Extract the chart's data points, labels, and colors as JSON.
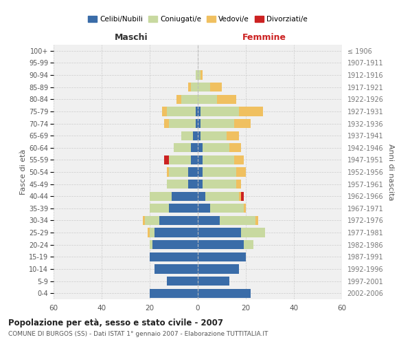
{
  "age_groups": [
    "100+",
    "95-99",
    "90-94",
    "85-89",
    "80-84",
    "75-79",
    "70-74",
    "65-69",
    "60-64",
    "55-59",
    "50-54",
    "45-49",
    "40-44",
    "35-39",
    "30-34",
    "25-29",
    "20-24",
    "15-19",
    "10-14",
    "5-9",
    "0-4"
  ],
  "birth_years": [
    "≤ 1906",
    "1907-1911",
    "1912-1916",
    "1917-1921",
    "1922-1926",
    "1927-1931",
    "1932-1936",
    "1937-1941",
    "1942-1946",
    "1947-1951",
    "1952-1956",
    "1957-1961",
    "1962-1966",
    "1967-1971",
    "1972-1976",
    "1977-1981",
    "1982-1986",
    "1987-1991",
    "1992-1996",
    "1997-2001",
    "2002-2006"
  ],
  "maschi": {
    "celibi": [
      0,
      0,
      0,
      0,
      0,
      1,
      1,
      2,
      3,
      3,
      4,
      4,
      11,
      12,
      16,
      18,
      19,
      20,
      18,
      13,
      20
    ],
    "coniugati": [
      0,
      0,
      1,
      3,
      7,
      12,
      11,
      5,
      7,
      9,
      8,
      9,
      9,
      8,
      6,
      2,
      1,
      0,
      0,
      0,
      0
    ],
    "vedovi": [
      0,
      0,
      0,
      1,
      2,
      2,
      2,
      0,
      0,
      0,
      1,
      0,
      0,
      0,
      1,
      1,
      0,
      0,
      0,
      0,
      0
    ],
    "divorziati": [
      0,
      0,
      0,
      0,
      0,
      0,
      0,
      0,
      0,
      2,
      0,
      0,
      0,
      0,
      0,
      0,
      0,
      0,
      0,
      0,
      0
    ]
  },
  "femmine": {
    "nubili": [
      0,
      0,
      0,
      0,
      0,
      1,
      1,
      1,
      2,
      2,
      2,
      2,
      3,
      5,
      9,
      18,
      19,
      20,
      17,
      13,
      22
    ],
    "coniugate": [
      0,
      0,
      1,
      5,
      8,
      16,
      14,
      11,
      11,
      13,
      14,
      14,
      14,
      14,
      15,
      10,
      4,
      0,
      0,
      0,
      0
    ],
    "vedove": [
      0,
      0,
      1,
      5,
      8,
      10,
      7,
      5,
      5,
      4,
      4,
      2,
      1,
      1,
      1,
      0,
      0,
      0,
      0,
      0,
      0
    ],
    "divorziate": [
      0,
      0,
      0,
      0,
      0,
      0,
      0,
      0,
      0,
      0,
      0,
      0,
      1,
      0,
      0,
      0,
      0,
      0,
      0,
      0,
      0
    ]
  },
  "colors": {
    "celibi_nubili": "#3a6ca8",
    "coniugati": "#c8d9a0",
    "vedovi": "#f0c060",
    "divorziati": "#cc2222"
  },
  "title": "Popolazione per età, sesso e stato civile - 2007",
  "subtitle": "COMUNE DI BURGOS (SS) - Dati ISTAT 1° gennaio 2007 - Elaborazione TUTTITALIA.IT",
  "xlabel_maschi": "Maschi",
  "xlabel_femmine": "Femmine",
  "ylabel_left": "Fasce di età",
  "ylabel_right": "Anni di nascita",
  "xlim": 60,
  "background_color": "#f0f0f0",
  "grid_color": "#cccccc"
}
